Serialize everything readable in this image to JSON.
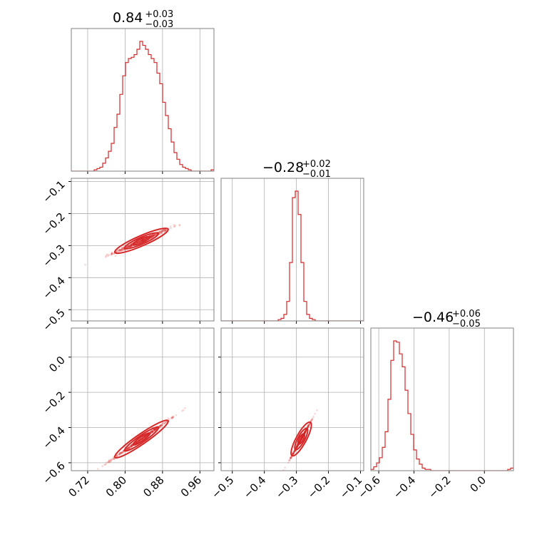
{
  "chart_data": {
    "type": "corner",
    "color": "#d62728",
    "params": [
      {
        "range": [
          0.685,
          0.99
        ],
        "ticks": [
          0.72,
          0.8,
          0.88,
          0.96
        ],
        "tick_labels": [
          "0.72",
          "0.80",
          "0.88",
          "0.96"
        ],
        "title": {
          "median": "0.84",
          "plus": "+0.03",
          "minus": "−0.03"
        }
      },
      {
        "range": [
          -0.535,
          -0.09
        ],
        "ticks": [
          -0.5,
          -0.4,
          -0.3,
          -0.2,
          -0.1
        ],
        "tick_labels": [
          "−0.5",
          "−0.4",
          "−0.3",
          "−0.2",
          "−0.1"
        ],
        "title": {
          "median": "−0.28",
          "plus": "+0.02",
          "minus": "−0.01"
        }
      },
      {
        "range": [
          -0.645,
          0.165
        ],
        "ticks": [
          -0.6,
          -0.4,
          -0.2,
          0.0
        ],
        "tick_labels": [
          "−0.6",
          "−0.4",
          "−0.2",
          "0.0"
        ],
        "title": {
          "median": "−0.46",
          "plus": "+0.06",
          "minus": "−0.05"
        }
      }
    ],
    "histograms": [
      {
        "edges_start": 0.685,
        "bin_width": 0.0061,
        "counts": [
          0,
          0,
          0,
          0,
          0,
          0,
          0,
          0,
          1,
          2,
          3,
          6,
          10,
          15,
          21,
          33,
          43,
          58,
          72,
          82,
          85,
          86,
          88,
          92,
          98,
          95,
          92,
          88,
          85,
          82,
          74,
          66,
          52,
          42,
          32,
          22,
          14,
          9,
          5,
          3,
          2,
          1,
          0,
          0,
          0,
          0,
          0,
          0,
          0,
          1
        ]
      },
      {
        "edges_start": -0.535,
        "bin_width": 0.0089,
        "counts": [
          0,
          0,
          0,
          0,
          0,
          0,
          0,
          0,
          0,
          0,
          0,
          0,
          0,
          0,
          0,
          0,
          0,
          0,
          0,
          0,
          1,
          2,
          5,
          15,
          45,
          95,
          100,
          82,
          45,
          15,
          5,
          2,
          1,
          0,
          0,
          0,
          0,
          0,
          0,
          0,
          0,
          0,
          0,
          0,
          0,
          0,
          0,
          0,
          0,
          0
        ]
      },
      {
        "edges_start": -0.645,
        "bin_width": 0.0162,
        "counts": [
          1,
          3,
          6,
          10,
          18,
          30,
          55,
          85,
          100,
          99,
          90,
          80,
          62,
          44,
          28,
          16,
          9,
          5,
          2,
          1,
          1,
          0,
          0,
          0,
          0,
          0,
          0,
          0,
          0,
          0,
          0,
          0,
          0,
          0,
          0,
          0,
          0,
          0,
          0,
          0,
          0,
          0,
          0,
          0,
          0,
          0,
          0,
          0,
          1,
          2
        ]
      }
    ],
    "correlations": [
      {
        "pair": [
          0,
          1
        ],
        "center": [
          0.835,
          -0.285
        ],
        "direction": [
          0.03,
          0.019
        ]
      },
      {
        "pair": [
          0,
          2
        ],
        "center": [
          0.835,
          -0.465
        ],
        "direction": [
          0.03,
          0.055
        ]
      },
      {
        "pair": [
          1,
          2
        ],
        "center": [
          -0.285,
          -0.465
        ],
        "direction": [
          0.015,
          0.05
        ]
      }
    ]
  }
}
